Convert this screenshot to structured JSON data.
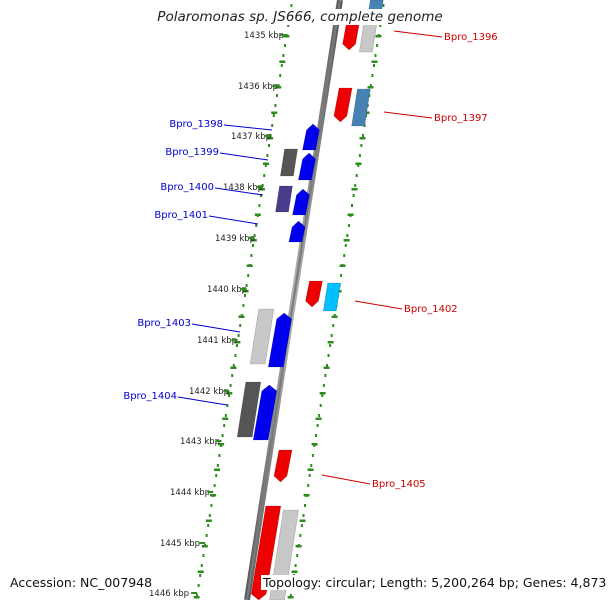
{
  "title": "Polaromonas sp. JS666, complete genome",
  "accession_text": "Accession: NC_007948",
  "topology_text": "Topology: circular; Length: 5,200,264 bp; Genes: 4,873",
  "colors": {
    "backbone": "#808080",
    "tick": "#2e8b1e",
    "label_left": "#0000cc",
    "label_right": "#cc0000",
    "kbp_text": "#222222"
  },
  "kbp_labels": [
    "1435 kbp",
    "1436 kbp",
    "1437 kbp",
    "1438 kbp",
    "1439 kbp",
    "1440 kbp",
    "1441 kbp",
    "1442 kbp",
    "1443 kbp",
    "1444 kbp",
    "1445 kbp",
    "1446 kbp"
  ],
  "gene_labels_left": [
    "Bpro_1398",
    "Bpro_1399",
    "Bpro_1400",
    "Bpro_1401",
    "Bpro_1403",
    "Bpro_1404"
  ],
  "gene_labels_right": [
    "Bpro_1396",
    "Bpro_1397",
    "Bpro_1402",
    "Bpro_1405"
  ],
  "gene_colors": {
    "red": "#ee0000",
    "blue": "#0000ee",
    "steelblue": "#4682b4",
    "lightgray": "#c8c8c8",
    "darkgray": "#555555",
    "slate": "#483d8b",
    "cyan": "#00bfff"
  }
}
